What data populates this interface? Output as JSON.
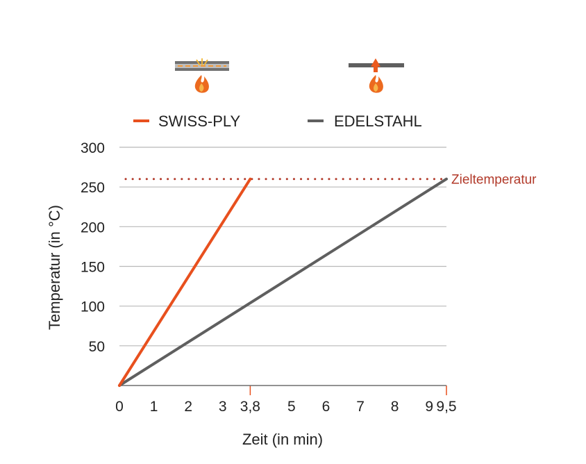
{
  "chart_data": {
    "type": "line",
    "xlabel": "Zeit (in min)",
    "ylabel": "Temperatur (in °C)",
    "xlim": [
      0,
      9.5
    ],
    "ylim": [
      0,
      300
    ],
    "x_ticks": [
      {
        "value": 0,
        "label": "0"
      },
      {
        "value": 1,
        "label": "1"
      },
      {
        "value": 2,
        "label": "2"
      },
      {
        "value": 3,
        "label": "3"
      },
      {
        "value": 3.8,
        "label": "3,8"
      },
      {
        "value": 5,
        "label": "5"
      },
      {
        "value": 6,
        "label": "6"
      },
      {
        "value": 7,
        "label": "7"
      },
      {
        "value": 8,
        "label": "8"
      },
      {
        "value": 9,
        "label": "9"
      },
      {
        "value": 9.5,
        "label": "9,5"
      }
    ],
    "x_marker_ticks": [
      3.8,
      9.5
    ],
    "y_ticks": [
      {
        "value": 50,
        "label": "50"
      },
      {
        "value": 100,
        "label": "100"
      },
      {
        "value": 150,
        "label": "150"
      },
      {
        "value": 200,
        "label": "200"
      },
      {
        "value": 250,
        "label": "250"
      },
      {
        "value": 300,
        "label": "300"
      }
    ],
    "grid": "horizontal",
    "legend_position": "top",
    "series": [
      {
        "name": "SWISS-PLY",
        "color": "#e8501e",
        "points": [
          [
            0,
            0
          ],
          [
            3.8,
            260
          ]
        ],
        "icon": "swiss-ply-pan-flame-icon"
      },
      {
        "name": "EDELSTAHL",
        "color": "#5f5f5f",
        "points": [
          [
            0,
            0
          ],
          [
            9.5,
            260
          ]
        ],
        "icon": "stainless-pan-flame-icon"
      }
    ],
    "reference_line": {
      "label": "Zieltemperatur",
      "y": 260,
      "color": "#b23a2a",
      "style": "dotted"
    }
  }
}
